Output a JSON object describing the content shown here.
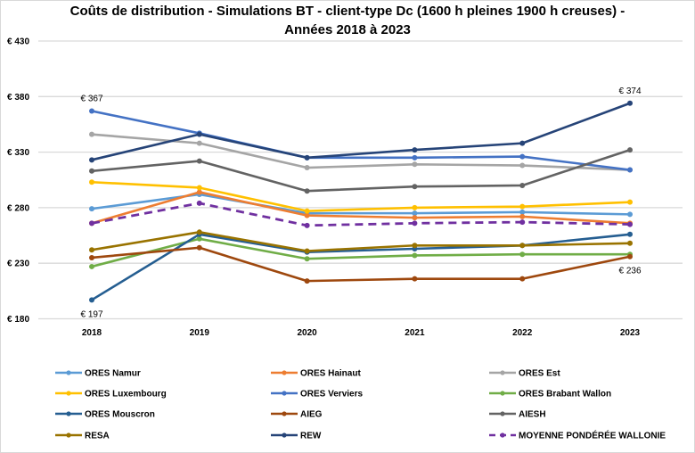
{
  "chart_data": {
    "type": "line",
    "title_line1": "Coûts de distribution  - Simulations  BT - client-type  Dc (1600 h pleines  1900 h creuses) -",
    "title_line2": "Années 2018 à 2023",
    "xlabel": "",
    "ylabel": "",
    "categories": [
      "2018",
      "2019",
      "2020",
      "2021",
      "2022",
      "2023"
    ],
    "ylim": [
      180,
      430
    ],
    "yticks": [
      180,
      230,
      280,
      330,
      380,
      430
    ],
    "ytick_labels": [
      "€ 180",
      "€ 230",
      "€ 280",
      "€ 330",
      "€ 380",
      "€ 430"
    ],
    "grid": true,
    "legend_position": "bottom",
    "series": [
      {
        "name": "ORES Namur",
        "color": "#5b9bd5",
        "dashed": false,
        "values": [
          279,
          292,
          275,
          275,
          276,
          274
        ]
      },
      {
        "name": "ORES Hainaut",
        "color": "#ed7d31",
        "dashed": false,
        "values": [
          266,
          294,
          273,
          271,
          272,
          266
        ]
      },
      {
        "name": "ORES Est",
        "color": "#a5a5a5",
        "dashed": false,
        "values": [
          346,
          338,
          316,
          319,
          318,
          314
        ]
      },
      {
        "name": "ORES Luxembourg",
        "color": "#ffc000",
        "dashed": false,
        "values": [
          303,
          298,
          277,
          280,
          281,
          285
        ]
      },
      {
        "name": "ORES Verviers",
        "color": "#4472c4",
        "dashed": false,
        "values": [
          367,
          347,
          325,
          325,
          326,
          314
        ]
      },
      {
        "name": "ORES Brabant Wallon",
        "color": "#70ad47",
        "dashed": false,
        "values": [
          227,
          252,
          234,
          237,
          238,
          238
        ]
      },
      {
        "name": "ORES Mouscron",
        "color": "#255e91",
        "dashed": false,
        "values": [
          197,
          256,
          240,
          243,
          246,
          256
        ]
      },
      {
        "name": "AIEG",
        "color": "#9e480e",
        "dashed": false,
        "values": [
          235,
          244,
          214,
          216,
          216,
          236
        ]
      },
      {
        "name": "AIESH",
        "color": "#636363",
        "dashed": false,
        "values": [
          313,
          322,
          295,
          299,
          300,
          332
        ]
      },
      {
        "name": "RESA",
        "color": "#997300",
        "dashed": false,
        "values": [
          242,
          258,
          241,
          246,
          246,
          248
        ]
      },
      {
        "name": "REW",
        "color": "#264478",
        "dashed": false,
        "values": [
          323,
          346,
          325,
          332,
          338,
          374
        ]
      },
      {
        "name": "MOYENNE PONDÉRÉE WALLONIE",
        "color": "#7030a0",
        "dashed": true,
        "values": [
          266,
          284,
          264,
          266,
          267,
          265
        ]
      }
    ],
    "annotations": [
      {
        "text": "€ 367",
        "series": "ORES Verviers",
        "category": "2018",
        "placement": "above"
      },
      {
        "text": "€ 197",
        "series": "ORES Mouscron",
        "category": "2018",
        "placement": "below"
      },
      {
        "text": "€ 374",
        "series": "REW",
        "category": "2023",
        "placement": "above"
      },
      {
        "text": "€ 236",
        "series": "AIEG",
        "category": "2023",
        "placement": "below"
      }
    ]
  }
}
